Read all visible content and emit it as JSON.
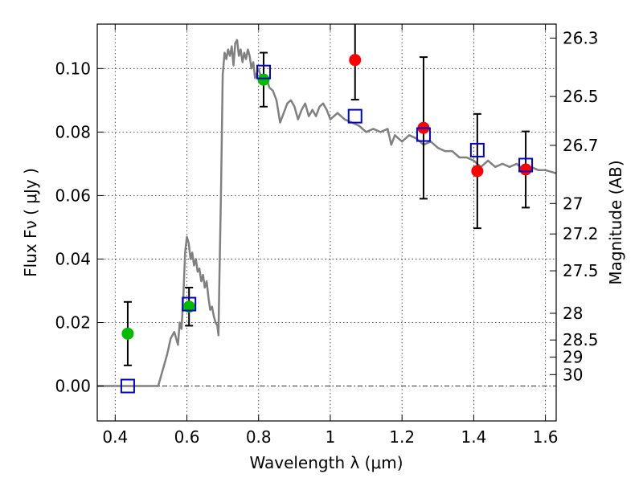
{
  "chart_data": {
    "type": "scatter",
    "xlabel": "Wavelength  λ (μm)",
    "ylabel": "Flux  Fν  ( μJy )",
    "y2label": "Magnitude (AB)",
    "xlim": [
      0.35,
      1.63
    ],
    "ylim": [
      -0.011,
      0.114
    ],
    "grid": true,
    "x_ticks": [
      0.4,
      0.6,
      0.8,
      1,
      1.2,
      1.4,
      1.6
    ],
    "x_tick_labels": [
      "0.4",
      "0.6",
      "0.8",
      "1",
      "1.2",
      "1.4",
      "1.6"
    ],
    "y_ticks": [
      0.0,
      0.02,
      0.04,
      0.06,
      0.08,
      0.1
    ],
    "y_tick_labels": [
      "0.00",
      "0.02",
      "0.04",
      "0.06",
      "0.08",
      "0.10"
    ],
    "mag_ticks": [
      {
        "flux": 0.1096,
        "label": "26.3"
      },
      {
        "flux": 0.0912,
        "label": "26.5"
      },
      {
        "flux": 0.0758,
        "label": "26.7"
      },
      {
        "flux": 0.0575,
        "label": "27"
      },
      {
        "flux": 0.0479,
        "label": "27.2"
      },
      {
        "flux": 0.0363,
        "label": "27.5"
      },
      {
        "flux": 0.0229,
        "label": "28"
      },
      {
        "flux": 0.0145,
        "label": "28.5"
      },
      {
        "flux": 0.0091,
        "label": "29"
      },
      {
        "flux": 0.0036,
        "label": "30"
      }
    ],
    "model_sed": {
      "color": "#808080",
      "x": [
        0.35,
        0.4,
        0.45,
        0.5,
        0.52,
        0.53,
        0.545,
        0.555,
        0.565,
        0.575,
        0.58,
        0.585,
        0.59,
        0.595,
        0.6,
        0.605,
        0.61,
        0.615,
        0.62,
        0.625,
        0.63,
        0.635,
        0.64,
        0.645,
        0.65,
        0.655,
        0.66,
        0.665,
        0.67,
        0.675,
        0.68,
        0.685,
        0.688,
        0.69,
        0.695,
        0.7,
        0.705,
        0.71,
        0.715,
        0.72,
        0.725,
        0.73,
        0.735,
        0.74,
        0.745,
        0.75,
        0.755,
        0.76,
        0.765,
        0.77,
        0.775,
        0.78,
        0.785,
        0.79,
        0.8,
        0.81,
        0.82,
        0.83,
        0.84,
        0.85,
        0.86,
        0.87,
        0.88,
        0.89,
        0.9,
        0.91,
        0.92,
        0.93,
        0.94,
        0.95,
        0.96,
        0.97,
        0.98,
        0.99,
        1.0,
        1.02,
        1.04,
        1.06,
        1.08,
        1.1,
        1.12,
        1.14,
        1.16,
        1.17,
        1.18,
        1.19,
        1.2,
        1.22,
        1.24,
        1.26,
        1.28,
        1.3,
        1.32,
        1.34,
        1.36,
        1.38,
        1.4,
        1.42,
        1.44,
        1.46,
        1.48,
        1.5,
        1.52,
        1.54,
        1.56,
        1.58,
        1.6,
        1.63
      ],
      "y": [
        0.0,
        0.0,
        0.0,
        0.0,
        0.0,
        0.004,
        0.01,
        0.015,
        0.017,
        0.013,
        0.02,
        0.018,
        0.028,
        0.042,
        0.047,
        0.045,
        0.04,
        0.042,
        0.038,
        0.04,
        0.036,
        0.037,
        0.033,
        0.035,
        0.031,
        0.033,
        0.028,
        0.024,
        0.025,
        0.022,
        0.02,
        0.019,
        0.016,
        0.03,
        0.06,
        0.098,
        0.105,
        0.103,
        0.106,
        0.104,
        0.107,
        0.101,
        0.108,
        0.109,
        0.104,
        0.106,
        0.102,
        0.105,
        0.103,
        0.106,
        0.104,
        0.1,
        0.102,
        0.097,
        0.1,
        0.096,
        0.098,
        0.094,
        0.093,
        0.09,
        0.083,
        0.086,
        0.089,
        0.09,
        0.088,
        0.084,
        0.087,
        0.089,
        0.085,
        0.087,
        0.085,
        0.088,
        0.089,
        0.087,
        0.084,
        0.086,
        0.084,
        0.083,
        0.082,
        0.08,
        0.081,
        0.08,
        0.081,
        0.076,
        0.079,
        0.078,
        0.077,
        0.079,
        0.078,
        0.076,
        0.077,
        0.075,
        0.074,
        0.074,
        0.072,
        0.072,
        0.071,
        0.069,
        0.071,
        0.069,
        0.07,
        0.069,
        0.07,
        0.068,
        0.069,
        0.068,
        0.068,
        0.067
      ]
    },
    "series": [
      {
        "marker": "circle",
        "color": "#00bb00",
        "points": [
          {
            "x": 0.435,
            "y": 0.0165,
            "err": 0.01
          },
          {
            "x": 0.606,
            "y": 0.025,
            "err": 0.006
          },
          {
            "x": 0.814,
            "y": 0.0965,
            "err": 0.0085
          }
        ]
      },
      {
        "marker": "circle",
        "color": "#ff0000",
        "points": [
          {
            "x": 1.069,
            "y": 0.1027,
            "err": 0.0125
          },
          {
            "x": 1.26,
            "y": 0.0813,
            "err": 0.0223
          },
          {
            "x": 1.41,
            "y": 0.0677,
            "err": 0.018
          },
          {
            "x": 1.545,
            "y": 0.0682,
            "err": 0.012
          }
        ]
      },
      {
        "marker": "square-open",
        "color": "#0000cc",
        "points": [
          {
            "x": 0.435,
            "y": 0.0
          },
          {
            "x": 0.606,
            "y": 0.0258
          },
          {
            "x": 0.814,
            "y": 0.0989
          },
          {
            "x": 1.069,
            "y": 0.085
          },
          {
            "x": 1.26,
            "y": 0.0792
          },
          {
            "x": 1.41,
            "y": 0.0743
          },
          {
            "x": 1.545,
            "y": 0.0696
          }
        ]
      }
    ]
  }
}
